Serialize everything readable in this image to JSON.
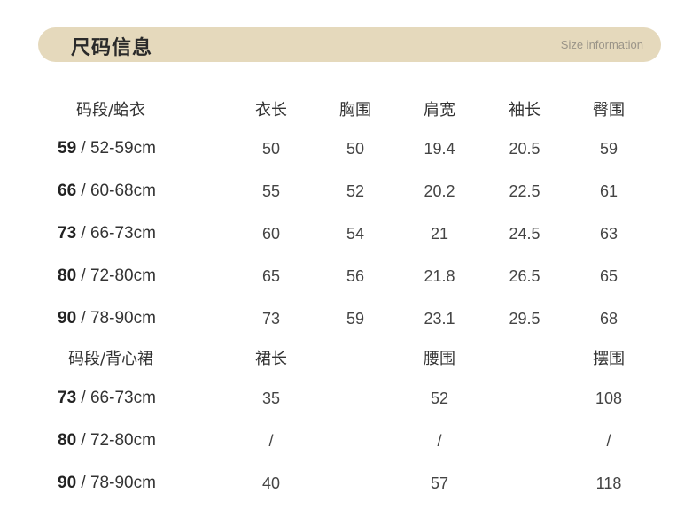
{
  "header": {
    "title": "尺码信息",
    "subtitle": "Size information",
    "background_color": "#e5d9bc"
  },
  "top_table": {
    "headers": [
      "码段/蛤衣",
      "衣长",
      "胸围",
      "肩宽",
      "袖长",
      "臀围"
    ],
    "rows": [
      {
        "size": "59",
        "range": "/ 52-59cm",
        "values": [
          "50",
          "50",
          "19.4",
          "20.5",
          "59"
        ]
      },
      {
        "size": "66",
        "range": "/ 60-68cm",
        "values": [
          "55",
          "52",
          "20.2",
          "22.5",
          "61"
        ]
      },
      {
        "size": "73",
        "range": "/ 66-73cm",
        "values": [
          "60",
          "54",
          "21",
          "24.5",
          "63"
        ]
      },
      {
        "size": "80",
        "range": "/ 72-80cm",
        "values": [
          "65",
          "56",
          "21.8",
          "26.5",
          "65"
        ]
      },
      {
        "size": "90",
        "range": "/ 78-90cm",
        "values": [
          "73",
          "59",
          "23.1",
          "29.5",
          "68"
        ]
      }
    ]
  },
  "bottom_table": {
    "headers": [
      "码段/背心裙",
      "裙长",
      "腰围",
      "摆围"
    ],
    "rows": [
      {
        "size": "73",
        "range": "/ 66-73cm",
        "values": [
          "35",
          "52",
          "108"
        ]
      },
      {
        "size": "80",
        "range": "/ 72-80cm",
        "values": [
          "/",
          "/",
          "/"
        ]
      },
      {
        "size": "90",
        "range": "/ 78-90cm",
        "values": [
          "40",
          "57",
          "118"
        ]
      }
    ]
  }
}
